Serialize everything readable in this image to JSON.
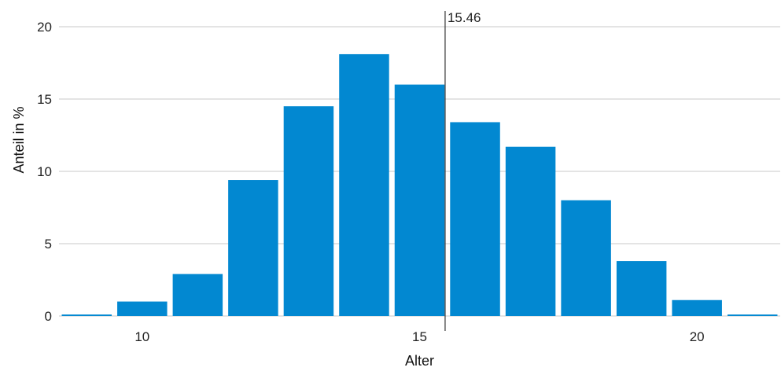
{
  "chart_data": {
    "type": "bar",
    "xlabel": "Alter",
    "ylabel": "Anteil in %",
    "ylim": [
      0,
      20
    ],
    "xlim": [
      8.5,
      21.5
    ],
    "y_ticks": [
      "0",
      "5",
      "10",
      "15",
      "20"
    ],
    "x_ticks": [
      {
        "value": 10,
        "label": "10"
      },
      {
        "value": 15,
        "label": "15"
      },
      {
        "value": 20,
        "label": "20"
      }
    ],
    "categories": [
      9,
      10,
      11,
      12,
      13,
      14,
      15,
      16,
      17,
      18,
      19,
      20,
      21
    ],
    "values": [
      0.1,
      1.0,
      2.9,
      9.4,
      14.5,
      18.1,
      16.0,
      13.4,
      11.7,
      8.0,
      3.8,
      1.1,
      0.1
    ],
    "grid": true,
    "marker": {
      "value": 15.46,
      "label": "15.46"
    },
    "colors": {
      "bar": "#0288d1",
      "grid": "#c8c8c8"
    }
  }
}
